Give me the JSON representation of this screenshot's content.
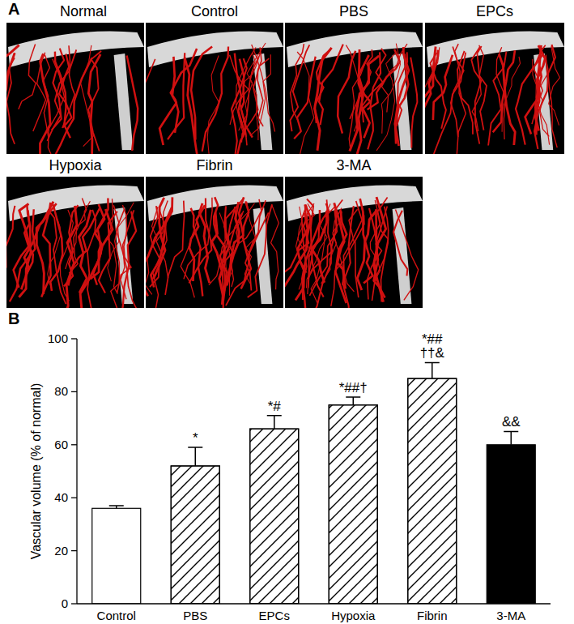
{
  "panel_labels": [
    "A",
    "B"
  ],
  "panel_a": {
    "titles": [
      "Normal",
      "Control",
      "PBS",
      "EPCs",
      "Hypoxia",
      "Fibrin",
      "3-MA"
    ]
  },
  "chart_data": {
    "type": "bar",
    "y_label": "Vascular volume (% of normal)",
    "categories": [
      "Control",
      "PBS",
      "EPCs",
      "Hypoxia",
      "Fibrin",
      "3-MA"
    ],
    "values": [
      36,
      52,
      66,
      75,
      85,
      60
    ],
    "errors": [
      1,
      7,
      5,
      3,
      6,
      5
    ],
    "colors": [
      "#ffffff",
      "#ffffff",
      "#ffffff",
      "#ffffff",
      "#ffffff",
      "#000000"
    ],
    "ylim": [
      0,
      100
    ],
    "yticks": [
      0,
      20,
      40,
      60,
      80,
      100
    ],
    "grid": false,
    "annotations": [
      {
        "category": "PBS",
        "text": [
          "*"
        ]
      },
      {
        "category": "EPCs",
        "text": [
          "*#"
        ]
      },
      {
        "category": "Hypoxia",
        "text": [
          "*##†"
        ]
      },
      {
        "category": "Fibrin",
        "text": [
          "*##",
          "††&"
        ]
      },
      {
        "category": "3-MA",
        "text": [
          "&&"
        ]
      }
    ]
  }
}
